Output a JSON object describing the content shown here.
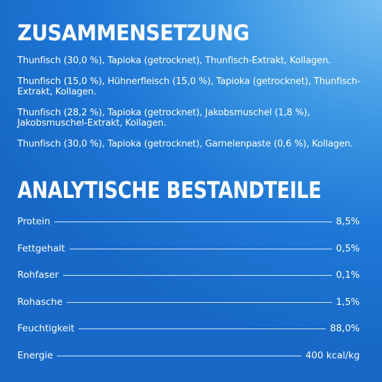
{
  "composition": {
    "heading": "ZUSAMMENSETZUNG",
    "lines": [
      "Thunfisch (30,0 %), Tapioka (getrocknet), Thunfisch-Extrakt, Kollagen.",
      "Thunfisch (15,0 %), Hühnerfleisch (15,0 %), Tapioka (getrocknet), Thunfisch-Extrakt, Kollagen.",
      "Thunfisch (28,2 %), Tapioka (getrocknet), Jakobsmuschel (1,8 %), Jakobsmuschel-Extrakt, Kollagen.",
      "Thunfisch (30,0 %), Tapioka (getrocknet), Garnelenpaste (0,6 %), Kollagen."
    ]
  },
  "analysis": {
    "heading": "ANALYTISCHE BESTANDTEILE",
    "rows": [
      {
        "label": "Protein",
        "value": "8,5%"
      },
      {
        "label": "Fettgehalt",
        "value": "0,5%"
      },
      {
        "label": "Rohfaser",
        "value": "0,1%"
      },
      {
        "label": "Rohasche",
        "value": "1,5%"
      },
      {
        "label": "Feuchtigkeit",
        "value": "88,0%"
      },
      {
        "label": "Energie",
        "value": "400 kcal/kg"
      }
    ]
  },
  "colors": {
    "background_light": "#7cc3f4",
    "background_mid": "#3b97e3",
    "background_dark": "#1869c7",
    "text": "#ffffff"
  }
}
